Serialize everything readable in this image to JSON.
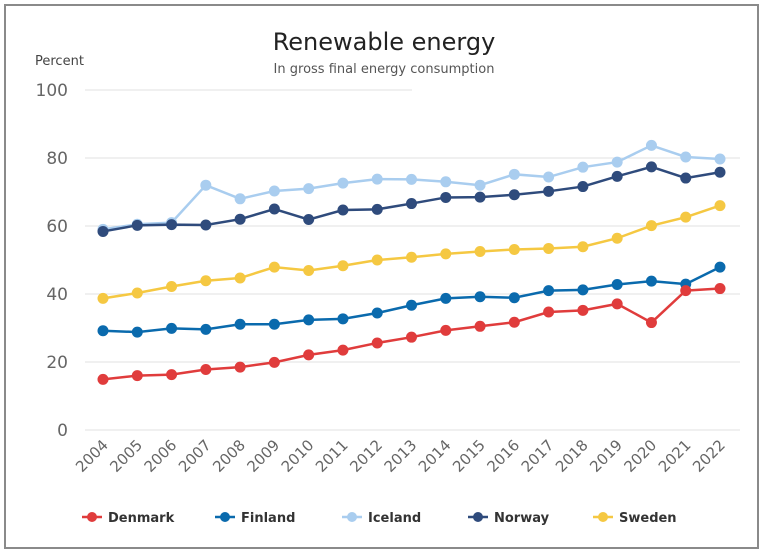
{
  "chart_data": {
    "type": "line",
    "title": "Renewable energy",
    "subtitle": "In gross final energy consumption",
    "ylabel": "Percent",
    "ylim": [
      0,
      100
    ],
    "yticks": [
      0,
      20,
      40,
      60,
      80,
      100
    ],
    "grid": true,
    "legend_position": "bottom",
    "x": [
      2004,
      2005,
      2006,
      2007,
      2008,
      2009,
      2010,
      2011,
      2012,
      2013,
      2014,
      2015,
      2016,
      2017,
      2018,
      2019,
      2020,
      2021,
      2022
    ],
    "series": [
      {
        "name": "Denmark",
        "color": "#e03c3c",
        "values": [
          14.9,
          16.0,
          16.3,
          17.8,
          18.5,
          19.9,
          22.1,
          23.5,
          25.6,
          27.3,
          29.3,
          30.5,
          31.7,
          34.7,
          35.2,
          37.1,
          31.6,
          41.0,
          41.6
        ]
      },
      {
        "name": "Finland",
        "color": "#0a6aad",
        "values": [
          29.2,
          28.8,
          29.9,
          29.6,
          31.1,
          31.1,
          32.4,
          32.7,
          34.4,
          36.7,
          38.7,
          39.2,
          38.9,
          41.0,
          41.2,
          42.8,
          43.8,
          42.9,
          47.9
        ]
      },
      {
        "name": "Iceland",
        "color": "#a9cdef",
        "values": [
          59.0,
          60.5,
          61.0,
          72.0,
          68.0,
          70.3,
          71.0,
          72.6,
          73.8,
          73.7,
          73.0,
          72.0,
          75.2,
          74.4,
          77.3,
          78.8,
          83.7,
          80.3,
          79.7
        ]
      },
      {
        "name": "Norway",
        "color": "#2f4b7c",
        "values": [
          58.4,
          60.2,
          60.4,
          60.3,
          62.0,
          65.0,
          61.9,
          64.7,
          64.9,
          66.6,
          68.4,
          68.5,
          69.2,
          70.2,
          71.6,
          74.6,
          77.4,
          74.1,
          75.8
        ]
      },
      {
        "name": "Sweden",
        "color": "#f5c842",
        "values": [
          38.7,
          40.3,
          42.2,
          43.9,
          44.7,
          47.9,
          46.9,
          48.3,
          50.0,
          50.8,
          51.8,
          52.5,
          53.1,
          53.4,
          53.9,
          56.4,
          60.1,
          62.6,
          66.0
        ]
      }
    ]
  }
}
